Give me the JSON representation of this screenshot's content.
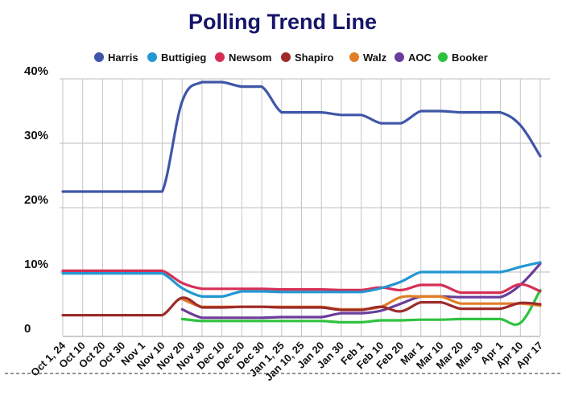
{
  "chart_data": {
    "type": "line",
    "title": "Polling Trend Line",
    "xlabel": "",
    "ylabel": "",
    "y_tick_labels": [
      "0",
      "10%",
      "20%",
      "30%",
      "40%"
    ],
    "y_ticks": [
      0,
      10,
      20,
      30,
      40
    ],
    "ylim": [
      0,
      40
    ],
    "grid": true,
    "legend_position": "top",
    "categories": [
      "Oct 1, 24",
      "Oct 10",
      "Oct 20",
      "Oct 30",
      "Nov 1",
      "Nov 10",
      "Nov 20",
      "Nov 30",
      "Dec 10",
      "Dec 20",
      "Dec 30",
      "Jan 1, 25",
      "Jan 10, 25",
      "Jan 20",
      "Jan 30",
      "Feb 1",
      "Feb 10",
      "Feb 20",
      "Mar 1",
      "Mar 10",
      "Mar 20",
      "Mar 30",
      "Apr 1",
      "Apr 10",
      "Apr 17"
    ],
    "series": [
      {
        "name": "Harris",
        "color": "#3f56a8",
        "values": [
          22.5,
          22.5,
          22.5,
          22.5,
          22.5,
          22.5,
          36.5,
          39.5,
          39.5,
          38.8,
          38.8,
          34.8,
          34.8,
          34.8,
          34.4,
          34.4,
          33.1,
          33.1,
          35.0,
          35.0,
          34.8,
          34.8,
          34.8,
          32.8,
          28.0
        ]
      },
      {
        "name": "Buttigieg",
        "color": "#2397d1",
        "values": [
          9.8,
          9.8,
          9.8,
          9.8,
          9.8,
          9.8,
          7.5,
          6.2,
          6.2,
          7.0,
          7.0,
          6.9,
          6.9,
          6.9,
          6.9,
          6.9,
          7.5,
          8.5,
          10.0,
          10.0,
          10.0,
          10.0,
          10.0,
          10.8,
          11.5
        ]
      },
      {
        "name": "Newsom",
        "color": "#d62f55",
        "values": [
          10.2,
          10.2,
          10.2,
          10.2,
          10.2,
          10.2,
          8.3,
          7.4,
          7.4,
          7.4,
          7.4,
          7.3,
          7.3,
          7.3,
          7.2,
          7.2,
          7.6,
          7.2,
          8.0,
          8.0,
          6.8,
          6.8,
          6.8,
          8.1,
          7.0
        ]
      },
      {
        "name": "Shapiro",
        "color": "#9e2b2b",
        "values": [
          3.3,
          3.3,
          3.3,
          3.3,
          3.3,
          3.3,
          6.0,
          4.5,
          4.5,
          4.6,
          4.6,
          4.5,
          4.5,
          4.5,
          4.1,
          4.1,
          4.6,
          3.9,
          5.3,
          5.3,
          4.3,
          4.3,
          4.3,
          5.2,
          5.0
        ]
      },
      {
        "name": "Walz",
        "color": "#e07e27",
        "values": [
          null,
          null,
          null,
          null,
          null,
          null,
          5.8,
          4.6,
          4.6,
          4.6,
          4.6,
          4.6,
          4.6,
          4.6,
          4.2,
          4.2,
          4.6,
          6.1,
          6.2,
          6.2,
          5.1,
          5.1,
          5.1,
          5.1,
          4.8
        ]
      },
      {
        "name": "AOC",
        "color": "#6a3d9a",
        "values": [
          null,
          null,
          null,
          null,
          null,
          null,
          4.2,
          2.9,
          2.9,
          2.9,
          2.9,
          3.0,
          3.0,
          3.0,
          3.6,
          3.6,
          4.0,
          5.1,
          6.2,
          6.2,
          6.1,
          6.1,
          6.1,
          8.0,
          11.3
        ]
      },
      {
        "name": "Booker",
        "color": "#2fc23f",
        "values": [
          null,
          null,
          null,
          null,
          null,
          null,
          2.7,
          2.4,
          2.4,
          2.4,
          2.4,
          2.4,
          2.4,
          2.4,
          2.2,
          2.2,
          2.5,
          2.5,
          2.6,
          2.6,
          2.7,
          2.7,
          2.7,
          2.1,
          7.2
        ]
      }
    ]
  }
}
